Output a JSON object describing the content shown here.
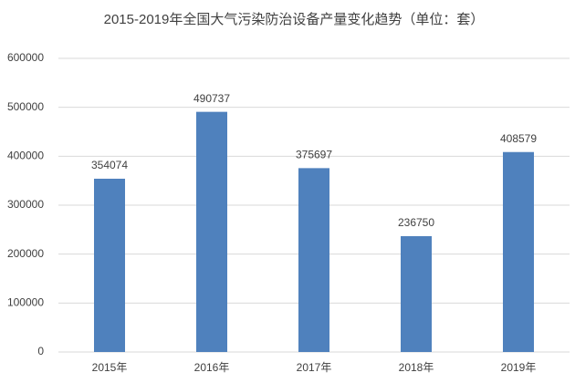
{
  "chart_data": {
    "type": "bar",
    "title": "2015-2019年全国大气污染防治设备产量变化趋势（单位：套）",
    "categories": [
      "2015年",
      "2016年",
      "2017年",
      "2018年",
      "2019年"
    ],
    "values": [
      354074,
      490737,
      375697,
      236750,
      408579
    ],
    "color": "#4f81bd",
    "ylim": [
      0,
      600000
    ],
    "yticks": [
      0,
      100000,
      200000,
      300000,
      400000,
      500000,
      600000
    ],
    "grid": true
  }
}
